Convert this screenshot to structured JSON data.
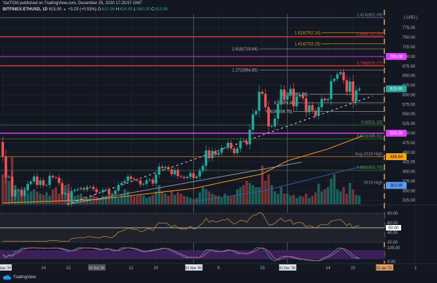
{
  "header": {
    "published": "YazTCM published on TradingView.com, December 25, 2020 17:25:57 GMT",
    "symbol": "BITFINEX:ETHUSD, 1D",
    "last": "615.90",
    "change": "+3.23 (+0.53%)",
    "open_label": "O:",
    "open": "612.56",
    "high_label": "H:",
    "high": "634.60",
    "low_label": "L:",
    "low": "580.00",
    "close_label": "C:",
    "close": "615.90"
  },
  "colors": {
    "up": "#26a69a",
    "down": "#ef5350",
    "background": "#131722",
    "ma_fast": "#f7931a",
    "ma_slow": "#2962ff"
  },
  "chart_data": {
    "type": "candlestick",
    "currency": "USD",
    "y_ticks": [
      "775.00",
      "750.00",
      "725.00",
      "700.00",
      "675.00",
      "650.00",
      "625.00",
      "600.00",
      "575.00",
      "550.00",
      "525.00",
      "500.00",
      "475.00",
      "450.00",
      "425.00",
      "400.00",
      "375.00",
      "350.00",
      "325.00"
    ],
    "y_tick_values": [
      775,
      750,
      725,
      700,
      675,
      650,
      625,
      600,
      575,
      550,
      525,
      500,
      475,
      450,
      425,
      400,
      375,
      350,
      325
    ],
    "start_date": "2020-09-01",
    "closes": [
      440,
      385,
      387,
      335,
      352,
      353,
      337,
      351,
      368,
      374,
      387,
      365,
      377,
      364,
      365,
      389,
      385,
      384,
      370,
      341,
      344,
      320,
      349,
      352,
      354,
      357,
      353,
      360,
      360,
      354,
      346,
      346,
      352,
      353,
      340,
      341,
      350,
      365,
      370,
      375,
      387,
      381,
      379,
      377,
      366,
      368,
      377,
      379,
      369,
      392,
      413,
      409,
      412,
      406,
      393,
      404,
      388,
      386,
      383,
      386,
      396,
      383,
      387,
      402,
      415,
      455,
      435,
      454,
      444,
      449,
      462,
      462,
      475,
      460,
      448,
      460,
      480,
      479,
      471,
      509,
      549,
      558,
      608,
      603,
      568,
      518,
      518,
      538,
      576,
      614,
      587,
      598,
      616,
      570,
      596,
      601,
      591,
      555,
      573,
      559,
      545,
      568,
      590,
      586,
      589,
      636,
      642,
      654,
      659,
      638,
      608,
      635,
      583,
      612,
      616
    ],
    "first_open": 477,
    "volumes": [
      70,
      80,
      55,
      110,
      45,
      35,
      30,
      40,
      25,
      30,
      35,
      30,
      25,
      22,
      28,
      20,
      35,
      40,
      25,
      38,
      45,
      48,
      30,
      20,
      22,
      25,
      18,
      15,
      20,
      22,
      18,
      15,
      20,
      20,
      22,
      25,
      18,
      15,
      25,
      35,
      30,
      20,
      18,
      20,
      22,
      20,
      15,
      18,
      22,
      30,
      45,
      30,
      25,
      20,
      30,
      22,
      28,
      25,
      20,
      18,
      15,
      12,
      15,
      28,
      40,
      35,
      30,
      25,
      22,
      20,
      15,
      25,
      20,
      18,
      22,
      35,
      40,
      45,
      55,
      50,
      45,
      40,
      40,
      90,
      55,
      70,
      45,
      30,
      25,
      40,
      25,
      25,
      20,
      22,
      15,
      20,
      18,
      25,
      15,
      20,
      28,
      48,
      30,
      35,
      40,
      60,
      70,
      35,
      30,
      40,
      25,
      50,
      35,
      22,
      20
    ],
    "ma_fast": [
      [
        "2020-09-01",
        318
      ],
      [
        "2020-10-01",
        327
      ],
      [
        "2020-11-01",
        356
      ],
      [
        "2020-11-23",
        394
      ],
      [
        "2020-12-01",
        428
      ],
      [
        "2020-12-14",
        459
      ],
      [
        "2020-12-25",
        493
      ]
    ],
    "ma_slow": [
      [
        "2020-11-01",
        322
      ],
      [
        "2020-11-23",
        349
      ],
      [
        "2020-12-25",
        414
      ]
    ],
    "levels": [
      {
        "price": 801.09,
        "label": "1.414(801.09)",
        "color": "#5b6a8f",
        "from": "full",
        "label_color": "#7b8bb5"
      },
      {
        "price": 762.14,
        "label": "1.618(762.14)",
        "color": "#b8860b",
        "from": "2020-12-12",
        "label_color": "#d4a017"
      },
      {
        "price": 751.39,
        "label": "0.886(751.39)",
        "color": "#e53935",
        "from": "full",
        "label_color": "#e53935"
      },
      {
        "price": 733.15,
        "label": "1.414(733.15)",
        "color": "#b8860b",
        "from": "2020-12-12",
        "label_color": "#d4a017"
      },
      {
        "price": 719.64,
        "label": "1.618(719.64)",
        "color": "#8a6f7e",
        "from": "2020-11-22",
        "label_color": "#c9a7b8"
      },
      {
        "price": 700,
        "label": "",
        "color": "#9c27b0",
        "from": "full",
        "label_color": ""
      },
      {
        "price": 675.77,
        "label": "0.786(675.77)",
        "color": "#e53935",
        "from": "full",
        "label_color": "#e53935"
      },
      {
        "price": 664.85,
        "label": "1.272(664.85)",
        "color": "#8a6f7e",
        "from": "2020-11-22",
        "label_color": "#c9a7b8"
      },
      {
        "price": 601.98,
        "label": "0.382(601.98)",
        "color": "#7c8f7c",
        "from": "2020-12-08",
        "label_color": "#c8d1c8"
      },
      {
        "price": 579.36,
        "label": "0.5(579.36)",
        "color": "#7c8f7c",
        "from": "2020-12-04",
        "label_color": "#c8d1c8"
      },
      {
        "price": 556.75,
        "label": "0.618(556.75)",
        "color": "#7c8f7c",
        "from": "2020-12-03",
        "label_color": "#c8d1c8"
      },
      {
        "price": 521.23,
        "label": "0.5(521.23)",
        "color": "#3f6b3f",
        "from": "full",
        "label_color": "#4caf50"
      },
      {
        "price": 500,
        "label": "",
        "color": "#e040fb",
        "from": "full",
        "label_color": ""
      },
      {
        "price": 485.31,
        "label": "0.618(485.31)",
        "color": "#3f6b3f",
        "from": "full",
        "label_color": "#4caf50"
      },
      {
        "price": 438.84,
        "label": "Aug 2018 High",
        "color": "#c77c12",
        "from": "full",
        "label_color": "#8a8f9c"
      },
      {
        "price": 403.73,
        "label": "0.886(403.73)",
        "color": "#2e5a2e",
        "from": "full",
        "label_color": "#4caf50"
      },
      {
        "price": 363.95,
        "label": "2019 High",
        "color": "",
        "from": "none",
        "label_color": "#8a8f9c"
      }
    ],
    "price_tags": [
      {
        "price": 700,
        "text": "700.00",
        "bg": "#e040fb",
        "fg": "#ffffff"
      },
      {
        "price": 615.9,
        "text": "615.90",
        "bg": "#26a69a",
        "fg": "#ffffff"
      },
      {
        "price": 500,
        "text": "500.00",
        "bg": "#e040fb",
        "fg": "#ffffff"
      },
      {
        "price": 438.84,
        "text": "438.84",
        "bg": "#f7a21b",
        "fg": "#131722"
      },
      {
        "price": 363.95,
        "text": "363.95",
        "bg": "#5b9cf6",
        "fg": "#131722"
      }
    ],
    "x_labels": [
      {
        "date": "2020-09-01",
        "text": "01 Sep '20",
        "boxed": "light"
      },
      {
        "date": "2020-09-14",
        "text": "14"
      },
      {
        "date": "2020-09-22",
        "text": "22"
      },
      {
        "date": "2020-10-01",
        "text": "01 Oct '20",
        "boxed": "dark"
      },
      {
        "date": "2020-10-12",
        "text": "12"
      },
      {
        "date": "2020-10-20",
        "text": "20"
      },
      {
        "date": "2020-11-01",
        "text": "01 Nov '20",
        "boxed": "light"
      },
      {
        "date": "2020-11-09",
        "text": "9"
      },
      {
        "date": "2020-11-23",
        "text": "23"
      },
      {
        "date": "2020-12-01",
        "text": "01 Dec '20",
        "boxed": "light"
      },
      {
        "date": "2020-12-14",
        "text": "14"
      },
      {
        "date": "2020-12-22",
        "text": "22"
      },
      {
        "date": "2021-01-01",
        "text": "01 Jan '21",
        "boxed": "orange"
      },
      {
        "date": "2021-01-11",
        "text": "1"
      }
    ],
    "rsi": {
      "ticks": [
        "80.00",
        "60.00",
        "40.00",
        "20.00"
      ],
      "tick_values": [
        80,
        60,
        40,
        20
      ],
      "tag": "50.00"
    },
    "stoch": {
      "ticks": [
        "100.00",
        "0.00"
      ],
      "tick_values": [
        100,
        0
      ]
    }
  },
  "footer": {
    "brand": "TradingView"
  }
}
